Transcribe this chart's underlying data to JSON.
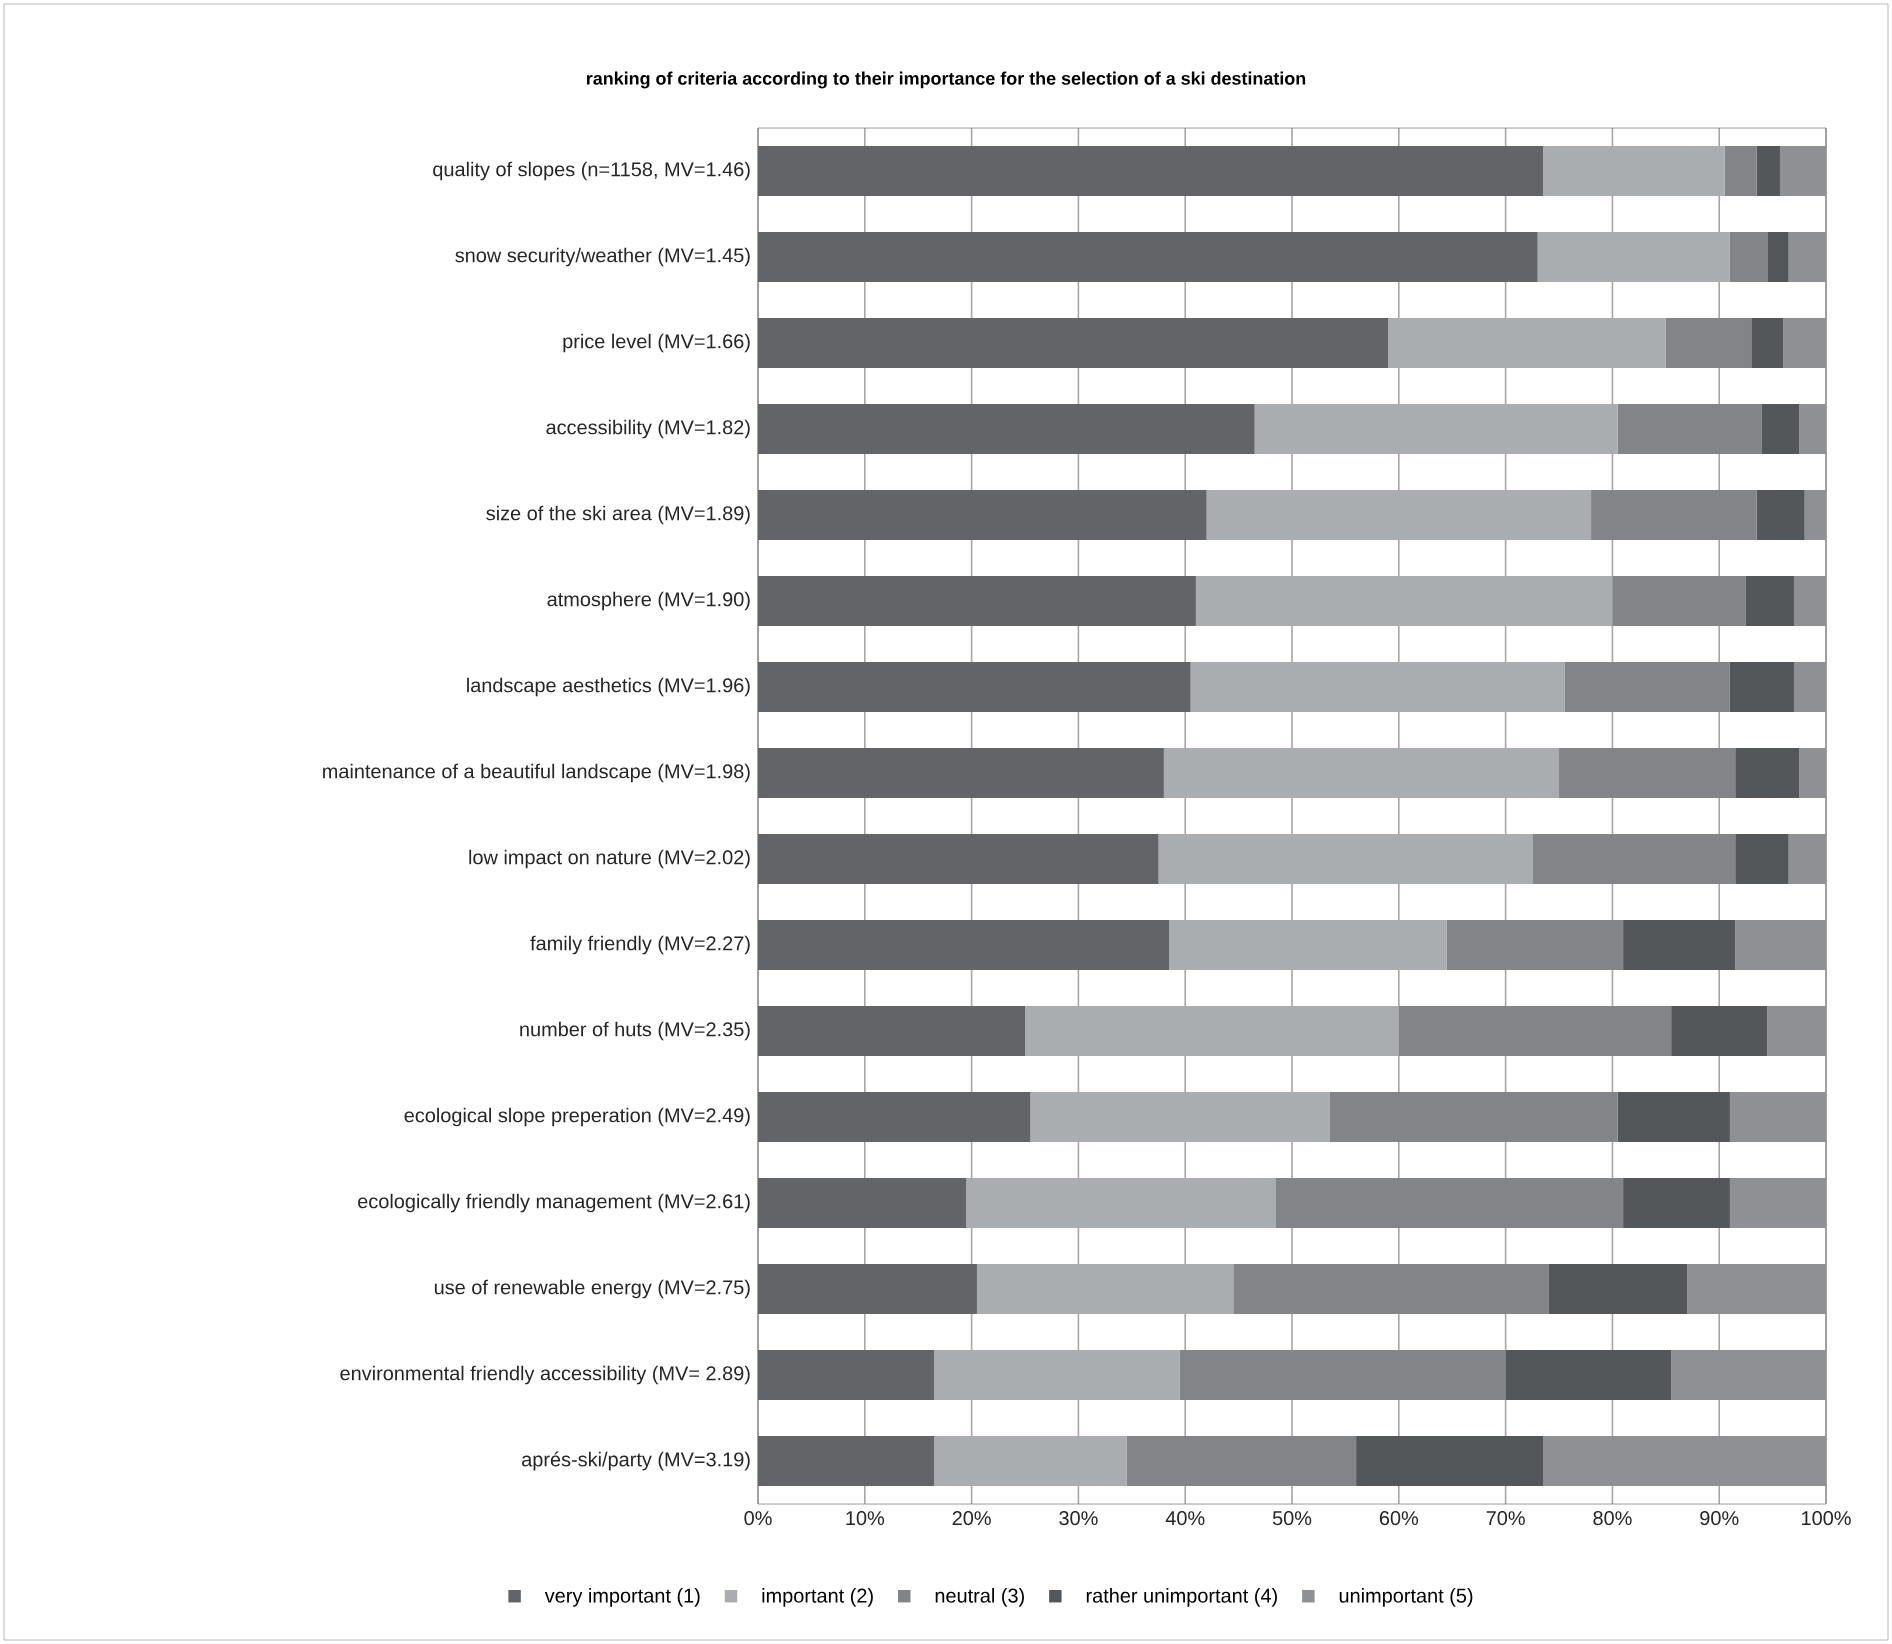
{
  "chart_data": {
    "type": "bar",
    "orientation": "horizontal",
    "stacked": true,
    "title": "ranking of criteria according to their importance for the selection of a ski destination",
    "categories": [
      "quality of slopes (n=1158, MV=1.46)",
      "snow security/weather (MV=1.45)",
      "price level (MV=1.66)",
      "accessibility (MV=1.82)",
      "size of the ski area (MV=1.89)",
      "atmosphere (MV=1.90)",
      "landscape aesthetics (MV=1.96)",
      "maintenance of a beautiful landscape (MV=1.98)",
      "low impact on nature (MV=2.02)",
      "family friendly (MV=2.27)",
      "number of huts (MV=2.35)",
      "ecological slope preperation (MV=2.49)",
      "ecologically friendly management (MV=2.61)",
      "use of renewable energy (MV=2.75)",
      "environmental friendly accessibility (MV= 2.89)",
      "aprés-ski/party (MV=3.19)"
    ],
    "series": [
      {
        "name": "very important (1)",
        "color": "#636468",
        "values": [
          73.5,
          73,
          59,
          46.5,
          42,
          41,
          40.5,
          38,
          37.5,
          38.5,
          25,
          25.5,
          19.5,
          20.5,
          16.5,
          16.5
        ]
      },
      {
        "name": "important (2)",
        "color": "#aaadb0",
        "values": [
          17,
          18,
          26,
          34,
          36,
          39,
          35,
          37,
          35,
          26,
          35,
          28,
          29,
          24,
          23,
          18
        ]
      },
      {
        "name": "neutral (3)",
        "color": "#838488",
        "values": [
          3,
          3.5,
          8,
          13.5,
          15.5,
          12.5,
          15.5,
          16.5,
          19,
          16.5,
          25.5,
          27,
          32.5,
          29.5,
          30.5,
          21.5
        ]
      },
      {
        "name": "rather unimportant (4)",
        "color": "#54575a",
        "values": [
          2.2,
          2,
          3,
          3.5,
          4.5,
          4.5,
          6,
          6,
          5,
          10.5,
          9,
          10.5,
          10,
          13,
          15.5,
          17.5
        ]
      },
      {
        "name": "unimportant (5)",
        "color": "#8e9094",
        "values": [
          4.3,
          3.5,
          4,
          2.5,
          2,
          3,
          3,
          2.5,
          3.5,
          8.5,
          5.5,
          9,
          9,
          13,
          14.5,
          26.5
        ]
      }
    ],
    "xlim": [
      0,
      100
    ],
    "xticks": [
      {
        "value": 0,
        "label": "0%"
      },
      {
        "value": 10,
        "label": "10%"
      },
      {
        "value": 20,
        "label": "20%"
      },
      {
        "value": 30,
        "label": "30%"
      },
      {
        "value": 40,
        "label": "40%"
      },
      {
        "value": 50,
        "label": "50%"
      },
      {
        "value": 60,
        "label": "60%"
      },
      {
        "value": 70,
        "label": "70%"
      },
      {
        "value": 80,
        "label": "80%"
      },
      {
        "value": 90,
        "label": "90%"
      },
      {
        "value": 100,
        "label": "100%"
      }
    ],
    "grid": "x",
    "legend": "bottom"
  }
}
